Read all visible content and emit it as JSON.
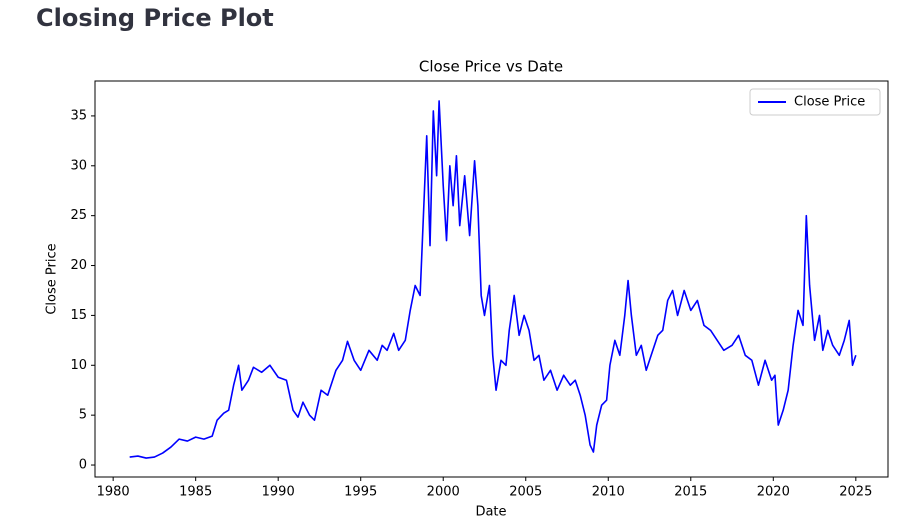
{
  "header": {
    "title": "Closing Price Plot"
  },
  "chart_data": {
    "type": "line",
    "title": "Close Price vs Date",
    "x_label": "Date",
    "y_label": "Close Price",
    "x": [
      1981.0,
      1981.5,
      1982.0,
      1982.5,
      1983.0,
      1983.5,
      1984.0,
      1984.5,
      1985.0,
      1985.5,
      1986.0,
      1986.3,
      1986.7,
      1987.0,
      1987.3,
      1987.6,
      1987.8,
      1988.2,
      1988.5,
      1989.0,
      1989.5,
      1990.0,
      1990.5,
      1990.9,
      1991.2,
      1991.5,
      1991.9,
      1992.2,
      1992.6,
      1993.0,
      1993.5,
      1993.9,
      1994.2,
      1994.6,
      1995.0,
      1995.5,
      1996.0,
      1996.3,
      1996.6,
      1997.0,
      1997.3,
      1997.7,
      1998.0,
      1998.3,
      1998.6,
      1998.8,
      1999.0,
      1999.2,
      1999.4,
      1999.6,
      1999.75,
      2000.0,
      2000.2,
      2000.4,
      2000.6,
      2000.8,
      2001.0,
      2001.3,
      2001.6,
      2001.9,
      2002.1,
      2002.3,
      2002.5,
      2002.8,
      2003.0,
      2003.2,
      2003.5,
      2003.8,
      2004.0,
      2004.3,
      2004.6,
      2004.9,
      2005.2,
      2005.5,
      2005.8,
      2006.1,
      2006.5,
      2006.9,
      2007.3,
      2007.7,
      2008.0,
      2008.3,
      2008.6,
      2008.9,
      2009.1,
      2009.3,
      2009.6,
      2009.9,
      2010.1,
      2010.4,
      2010.7,
      2011.0,
      2011.2,
      2011.4,
      2011.7,
      2012.0,
      2012.3,
      2012.6,
      2013.0,
      2013.3,
      2013.6,
      2013.9,
      2014.2,
      2014.6,
      2015.0,
      2015.4,
      2015.8,
      2016.2,
      2016.6,
      2017.0,
      2017.5,
      2017.9,
      2018.3,
      2018.7,
      2019.1,
      2019.5,
      2019.9,
      2020.1,
      2020.3,
      2020.6,
      2020.9,
      2021.2,
      2021.5,
      2021.8,
      2022.0,
      2022.2,
      2022.5,
      2022.8,
      2023.0,
      2023.3,
      2023.6,
      2024.0,
      2024.3,
      2024.6,
      2024.8,
      2025.0
    ],
    "series": [
      {
        "name": "Close Price",
        "color": "#0000ff",
        "values": [
          0.8,
          0.9,
          0.7,
          0.8,
          1.2,
          1.8,
          2.6,
          2.4,
          2.8,
          2.6,
          2.9,
          4.5,
          5.2,
          5.5,
          8.0,
          10.0,
          7.5,
          8.5,
          9.8,
          9.3,
          10.0,
          8.8,
          8.5,
          5.5,
          4.8,
          6.3,
          5.0,
          4.5,
          7.5,
          7.0,
          9.5,
          10.5,
          12.4,
          10.5,
          9.5,
          11.5,
          10.5,
          12.0,
          11.5,
          13.2,
          11.5,
          12.5,
          15.5,
          18.0,
          17.0,
          25.0,
          33.0,
          22.0,
          35.5,
          29.0,
          36.5,
          28.0,
          22.5,
          30.0,
          26.0,
          31.0,
          24.0,
          29.0,
          23.0,
          30.5,
          26.0,
          17.0,
          15.0,
          18.0,
          11.0,
          7.5,
          10.5,
          10.0,
          13.5,
          17.0,
          13.0,
          15.0,
          13.5,
          10.5,
          11.0,
          8.5,
          9.5,
          7.5,
          9.0,
          8.0,
          8.5,
          7.0,
          5.0,
          2.0,
          1.3,
          4.0,
          6.0,
          6.5,
          10.0,
          12.5,
          11.0,
          15.0,
          18.5,
          15.0,
          11.0,
          12.0,
          9.5,
          11.0,
          13.0,
          13.5,
          16.5,
          17.5,
          15.0,
          17.5,
          15.5,
          16.5,
          14.0,
          13.5,
          12.5,
          11.5,
          12.0,
          13.0,
          11.0,
          10.5,
          8.0,
          10.5,
          8.5,
          9.0,
          4.0,
          5.5,
          7.5,
          12.0,
          15.5,
          14.0,
          25.0,
          18.0,
          12.5,
          15.0,
          11.5,
          13.5,
          12.0,
          11.0,
          12.5,
          14.5,
          10.0,
          11.0
        ]
      }
    ],
    "xlim": [
      1978.9,
      2026.95
    ],
    "ylim": [
      -1.2,
      38.5
    ],
    "xticks": [
      1980,
      1985,
      1990,
      1995,
      2000,
      2005,
      2010,
      2015,
      2020,
      2025
    ],
    "yticks": [
      0,
      5,
      10,
      15,
      20,
      25,
      30,
      35
    ],
    "legend": "upper right",
    "grid": false
  }
}
